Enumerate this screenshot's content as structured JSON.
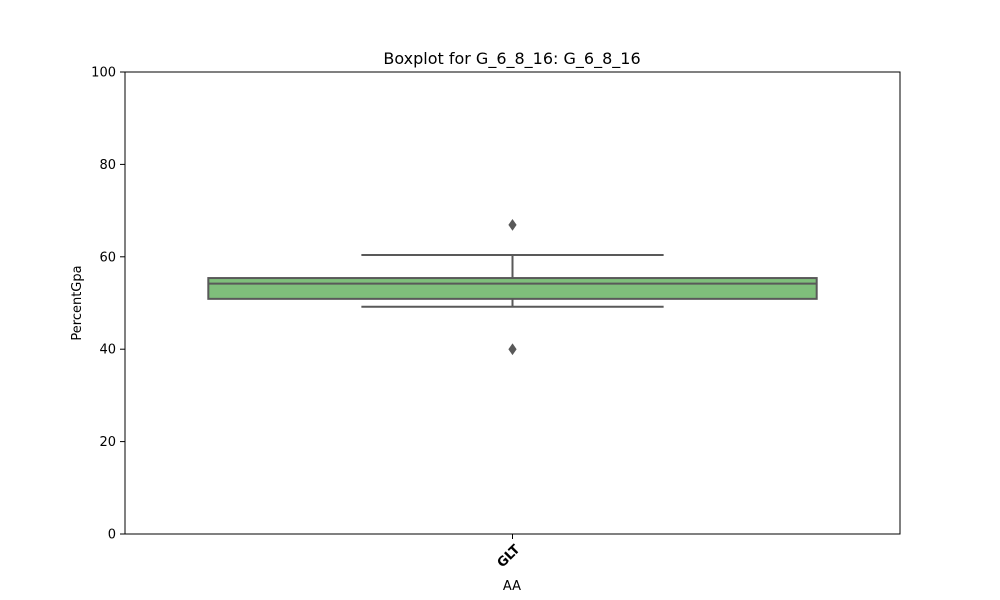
{
  "chart_data": {
    "type": "boxplot",
    "title": "Boxplot for G_6_8_16: G_6_8_16",
    "xlabel": "AA",
    "ylabel": "PercentGpa",
    "ylim": [
      0,
      100
    ],
    "yticks": [
      0,
      20,
      40,
      60,
      80,
      100
    ],
    "grid": false,
    "categories": [
      "GLT"
    ],
    "boxes": [
      {
        "category": "GLT",
        "whisker_low": 49.2,
        "q1": 50.9,
        "median": 54.2,
        "q3": 55.4,
        "whisker_high": 60.4,
        "outliers": [
          66.9,
          40.0
        ]
      }
    ],
    "colors": {
      "box_fill": "#7fbf7b",
      "box_line": "#595959",
      "outlier": "#595959"
    }
  }
}
